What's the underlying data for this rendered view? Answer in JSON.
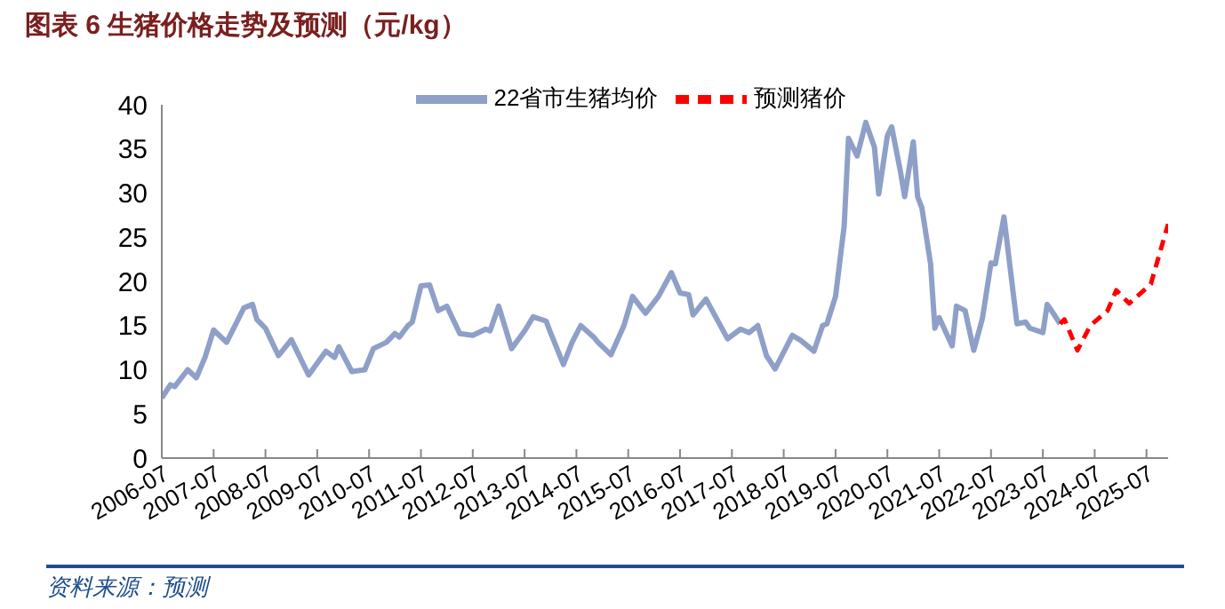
{
  "chart_data": {
    "type": "line",
    "title": "图表 6  生猪价格走势及预测（元/kg）",
    "xlim": [
      "2006-07",
      "2025-12"
    ],
    "xticks": [
      "2006-07",
      "2007-07",
      "2008-07",
      "2009-07",
      "2010-07",
      "2011-07",
      "2012-07",
      "2013-07",
      "2014-07",
      "2015-07",
      "2016-07",
      "2017-07",
      "2018-07",
      "2019-07",
      "2020-07",
      "2021-07",
      "2022-07",
      "2023-07",
      "2024-07",
      "2025-07"
    ],
    "ylim": [
      0,
      40
    ],
    "yticks": [
      0,
      5,
      10,
      15,
      20,
      25,
      30,
      35,
      40
    ],
    "legend": "top",
    "marker": "none",
    "series": [
      {
        "name": "22省市生猪均价",
        "color": "#8fa0c8",
        "line_style": "solid",
        "x": [
          "2006-07",
          "2006-09",
          "2006-10",
          "2007-01",
          "2007-03",
          "2007-05",
          "2007-07",
          "2007-10",
          "2008-02",
          "2008-04",
          "2008-05",
          "2008-07",
          "2008-10",
          "2009-01",
          "2009-03",
          "2009-05",
          "2009-09",
          "2009-11",
          "2009-12",
          "2010-03",
          "2010-06",
          "2010-08",
          "2010-11",
          "2011-01",
          "2011-02",
          "2011-04",
          "2011-05",
          "2011-07",
          "2011-09",
          "2011-11",
          "2012-01",
          "2012-04",
          "2012-07",
          "2012-10",
          "2012-11",
          "2013-01",
          "2013-04",
          "2013-07",
          "2013-09",
          "2013-12",
          "2014-01",
          "2014-04",
          "2014-06",
          "2014-08",
          "2014-11",
          "2014-12",
          "2015-03",
          "2015-06",
          "2015-08",
          "2015-11",
          "2016-02",
          "2016-05",
          "2016-07",
          "2016-09",
          "2016-10",
          "2017-01",
          "2017-06",
          "2017-09",
          "2017-11",
          "2018-01",
          "2018-03",
          "2018-05",
          "2018-09",
          "2018-11",
          "2019-02",
          "2019-04",
          "2019-05",
          "2019-07",
          "2019-09",
          "2019-10",
          "2019-12",
          "2020-02",
          "2020-04",
          "2020-05",
          "2020-07",
          "2020-08",
          "2020-10",
          "2020-11",
          "2021-01",
          "2021-02",
          "2021-03",
          "2021-05",
          "2021-06",
          "2021-07",
          "2021-10",
          "2021-11",
          "2022-01",
          "2022-03",
          "2022-05",
          "2022-07",
          "2022-08",
          "2022-10",
          "2023-01",
          "2023-03",
          "2023-04",
          "2023-07",
          "2023-08",
          "2023-09",
          "2023-11"
        ],
        "values": [
          6.8,
          8.3,
          8.1,
          10.0,
          9.1,
          11.4,
          14.5,
          13.1,
          17.0,
          17.4,
          15.7,
          14.7,
          11.6,
          13.4,
          11.4,
          9.4,
          12.1,
          11.4,
          12.6,
          9.8,
          10.0,
          12.4,
          13.1,
          14.1,
          13.7,
          15.0,
          15.4,
          19.5,
          19.6,
          16.7,
          17.2,
          14.1,
          13.9,
          14.6,
          14.4,
          17.2,
          12.4,
          14.4,
          16.0,
          15.5,
          14.2,
          10.6,
          13.1,
          15.0,
          13.7,
          13.1,
          11.7,
          15.0,
          18.3,
          16.4,
          18.3,
          21.0,
          18.7,
          18.5,
          16.2,
          18.0,
          13.5,
          14.6,
          14.2,
          15.0,
          11.6,
          10.1,
          13.9,
          13.3,
          12.1,
          15.0,
          15.2,
          18.3,
          26.3,
          36.2,
          34.2,
          38.0,
          35.2,
          29.9,
          36.5,
          37.5,
          32.5,
          29.6,
          35.8,
          29.6,
          28.3,
          22.0,
          14.7,
          15.9,
          12.7,
          17.2,
          16.7,
          12.2,
          15.8,
          22.1,
          22.0,
          27.3,
          15.2,
          15.4,
          14.7,
          14.2,
          17.4,
          16.7,
          15.2
        ]
      },
      {
        "name": "预测猪价",
        "color": "#ff0000",
        "line_style": "dashed",
        "x": [
          "2023-11",
          "2023-12",
          "2024-03",
          "2024-06",
          "2024-10",
          "2024-12",
          "2025-03",
          "2025-08",
          "2025-12"
        ],
        "values": [
          15.2,
          15.7,
          12.2,
          15.0,
          16.7,
          19.0,
          17.5,
          19.7,
          26.5
        ]
      }
    ],
    "annotations": [
      "资料来源：预测"
    ]
  }
}
